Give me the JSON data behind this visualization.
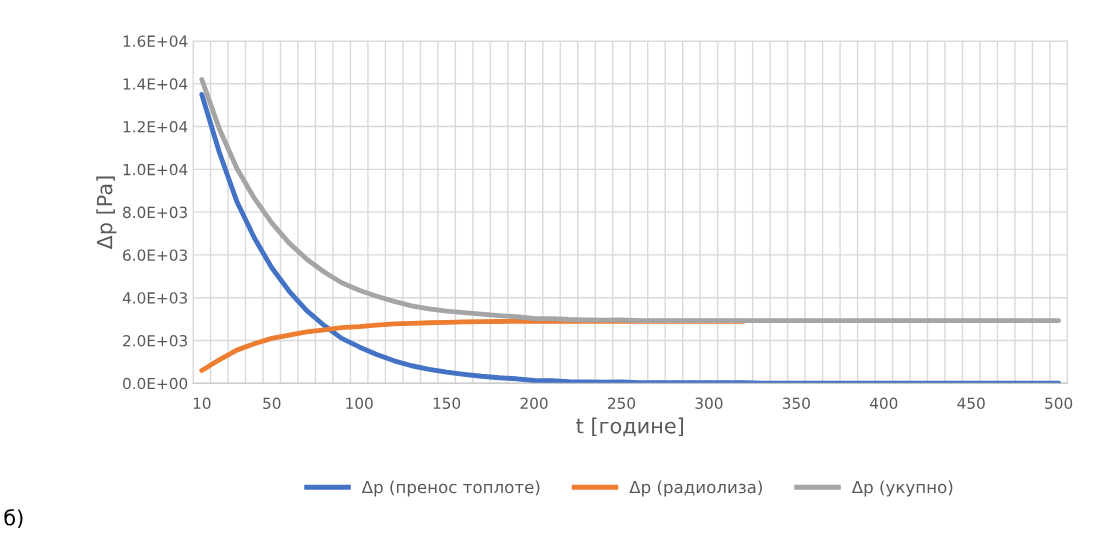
{
  "chart_data": {
    "type": "line",
    "xlabel": "t [године]",
    "ylabel": "Δp [Pa]",
    "categories": [
      "10",
      null,
      null,
      null,
      "50",
      null,
      null,
      null,
      null,
      "100",
      null,
      null,
      null,
      null,
      "150",
      null,
      null,
      null,
      null,
      "200",
      null,
      null,
      null,
      null,
      "250",
      null,
      null,
      null,
      null,
      "300",
      null,
      null,
      null,
      null,
      "350",
      null,
      null,
      null,
      null,
      "400",
      null,
      null,
      null,
      null,
      "450",
      null,
      null,
      null,
      null,
      "500"
    ],
    "series": [
      {
        "name": "Δp (пренос топлоте)",
        "color": "#4472c4",
        "values": [
          13500,
          10800,
          8500,
          6800,
          5400,
          4300,
          3400,
          2700,
          2100,
          1700,
          1350,
          1050,
          820,
          650,
          520,
          420,
          330,
          260,
          210,
          130,
          120,
          80,
          60,
          50,
          60,
          30,
          30,
          30,
          30,
          30,
          30,
          30,
          0,
          0,
          0,
          0,
          0,
          0,
          0,
          0,
          0,
          0,
          0,
          0,
          0,
          0,
          0,
          0,
          0,
          0
        ]
      },
      {
        "name": "Δp (радиолиза)",
        "color": "#ed7d31",
        "values": [
          600,
          1100,
          1550,
          1850,
          2100,
          2250,
          2400,
          2500,
          2600,
          2650,
          2720,
          2780,
          2800,
          2830,
          2850,
          2870,
          2880,
          2890,
          2900,
          2900,
          2900,
          2900,
          2900,
          2900,
          2900,
          2900,
          2900,
          2900,
          2900,
          2900,
          2900,
          2900,
          null,
          null,
          null,
          null,
          null,
          null,
          null,
          null,
          null,
          null,
          null,
          null,
          null,
          null,
          null,
          null,
          null,
          null
        ]
      },
      {
        "name": "Δp (укупно)",
        "color": "#a5a5a5",
        "values": [
          14200,
          11900,
          10050,
          8650,
          7500,
          6550,
          5800,
          5200,
          4700,
          4350,
          4070,
          3830,
          3620,
          3480,
          3370,
          3300,
          3230,
          3160,
          3110,
          3030,
          3020,
          2980,
          2960,
          2950,
          2960,
          2930,
          2930,
          2930,
          2930,
          2930,
          2930,
          2930,
          2930,
          2930,
          2930,
          2930,
          2930,
          2930,
          2930,
          2930,
          2930,
          2930,
          2930,
          2930,
          2930,
          2930,
          2930,
          2930,
          2930,
          2930
        ]
      }
    ],
    "ylim": [
      0,
      16000
    ],
    "yticks": [
      {
        "value": 0,
        "label": "0.0E+00"
      },
      {
        "value": 2000,
        "label": "2.0E+03"
      },
      {
        "value": 4000,
        "label": "4.0E+03"
      },
      {
        "value": 6000,
        "label": "6.0E+03"
      },
      {
        "value": 8000,
        "label": "8.0E+03"
      },
      {
        "value": 10000,
        "label": "1.0E+04"
      },
      {
        "value": 12000,
        "label": "1.2E+04"
      },
      {
        "value": 14000,
        "label": "1.4E+04"
      },
      {
        "value": 16000,
        "label": "1.6E+04"
      }
    ],
    "grid": true,
    "legend": "bottom",
    "marker": "none",
    "line_style": "solid",
    "annotations": [
      "б)"
    ]
  }
}
